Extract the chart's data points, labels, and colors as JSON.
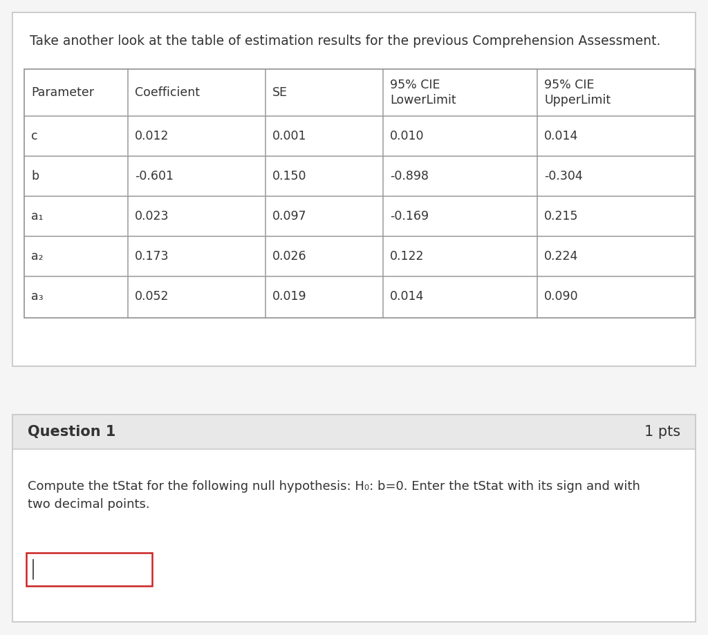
{
  "title": "Take another look at the table of estimation results for the previous Comprehension Assessment.",
  "table_headers": [
    "Parameter",
    "Coefficient",
    "SE",
    "95% CIE\nLowerLimit",
    "95% CIE\nUpperLimit"
  ],
  "table_rows": [
    [
      "c",
      "0.012",
      "0.001",
      "0.010",
      "0.014"
    ],
    [
      "b",
      "-0.601",
      "0.150",
      "-0.898",
      "-0.304"
    ],
    [
      "a₁",
      "0.023",
      "0.097",
      "-0.169",
      "0.215"
    ],
    [
      "a₂",
      "0.173",
      "0.026",
      "0.122",
      "0.224"
    ],
    [
      "a₃",
      "0.052",
      "0.019",
      "0.014",
      "0.090"
    ]
  ],
  "question_label": "Question 1",
  "question_pts": "1 pts",
  "question_text_line1": "Compute the tStat for the following null hypothesis: H₀: b=0. Enter the tStat with its sign and with",
  "question_text_line2": "two decimal points.",
  "bg_color": "#f5f5f5",
  "top_box_bg": "#ffffff",
  "border_color": "#c8c8c8",
  "table_line_color": "#999999",
  "text_color": "#333333",
  "question_header_bg": "#e8e8e8",
  "question_body_bg": "#ffffff",
  "input_border_color": "#cc2222",
  "font_size_title": 13.5,
  "font_size_table": 12.5,
  "font_size_question_header": 15,
  "font_size_body": 13
}
